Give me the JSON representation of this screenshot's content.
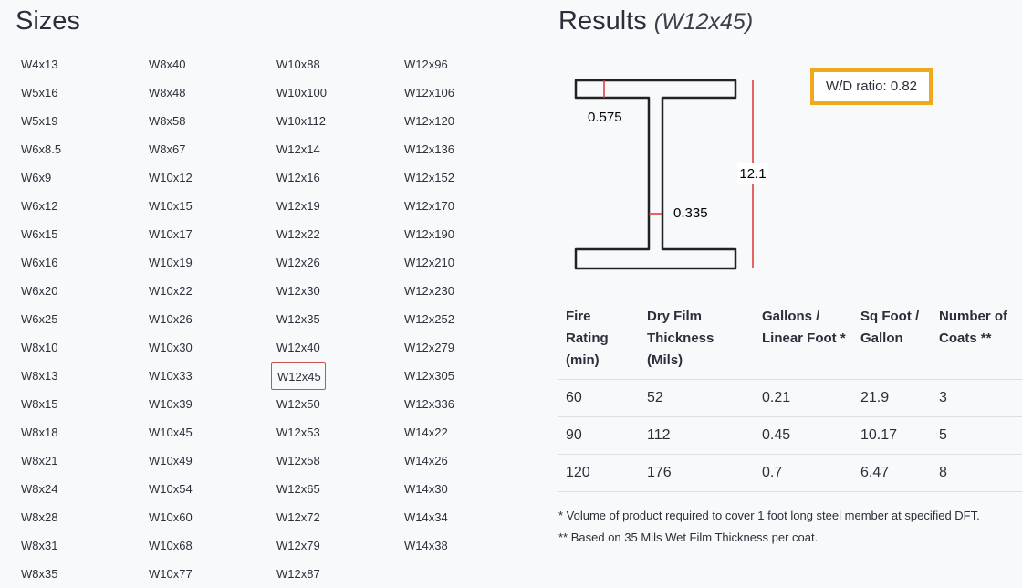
{
  "sizes": {
    "title": "Sizes",
    "columns": [
      [
        "W4x13",
        "W5x16",
        "W5x19",
        "W6x8.5",
        "W6x9",
        "W6x12",
        "W6x15",
        "W6x16",
        "W6x20",
        "W6x25",
        "W8x10",
        "W8x13",
        "W8x15",
        "W8x18",
        "W8x21",
        "W8x24",
        "W8x28",
        "W8x31",
        "W8x35"
      ],
      [
        "W8x40",
        "W8x48",
        "W8x58",
        "W8x67",
        "W10x12",
        "W10x15",
        "W10x17",
        "W10x19",
        "W10x22",
        "W10x26",
        "W10x30",
        "W10x33",
        "W10x39",
        "W10x45",
        "W10x49",
        "W10x54",
        "W10x60",
        "W10x68",
        "W10x77"
      ],
      [
        "W10x88",
        "W10x100",
        "W10x112",
        "W12x14",
        "W12x16",
        "W12x19",
        "W12x22",
        "W12x26",
        "W12x30",
        "W12x35",
        "W12x40",
        "W12x45",
        "W12x50",
        "W12x53",
        "W12x58",
        "W12x65",
        "W12x72",
        "W12x79",
        "W12x87"
      ],
      [
        "W12x96",
        "W12x106",
        "W12x120",
        "W12x136",
        "W12x152",
        "W12x170",
        "W12x190",
        "W12x210",
        "W12x230",
        "W12x252",
        "W12x279",
        "W12x305",
        "W12x336",
        "W14x22",
        "W14x26",
        "W14x30",
        "W14x34",
        "W14x38"
      ]
    ]
  },
  "results": {
    "title": "Results",
    "size": "W12x45",
    "diagram": {
      "flange_thickness": 0.575,
      "web_thickness": 0.335,
      "depth": 12.1
    },
    "ratio": {
      "label": "W/D ratio:",
      "value": 0.82
    },
    "table": {
      "headers": [
        "Fire Rating (min)",
        "Dry Film Thickness (Mils)",
        "Gallons / Linear Foot *",
        "Sq Foot / Gallon",
        "Number of Coats **"
      ],
      "rows": [
        [
          60,
          52,
          0.21,
          21.9,
          3
        ],
        [
          90,
          112,
          0.45,
          10.17,
          5
        ],
        [
          120,
          176,
          0.7,
          6.47,
          8
        ]
      ]
    },
    "footnotes": [
      "* Volume of product required to cover 1 foot long steel member at specified DFT.",
      "** Based on 35 Mils Wet Film Thickness per coat."
    ]
  }
}
